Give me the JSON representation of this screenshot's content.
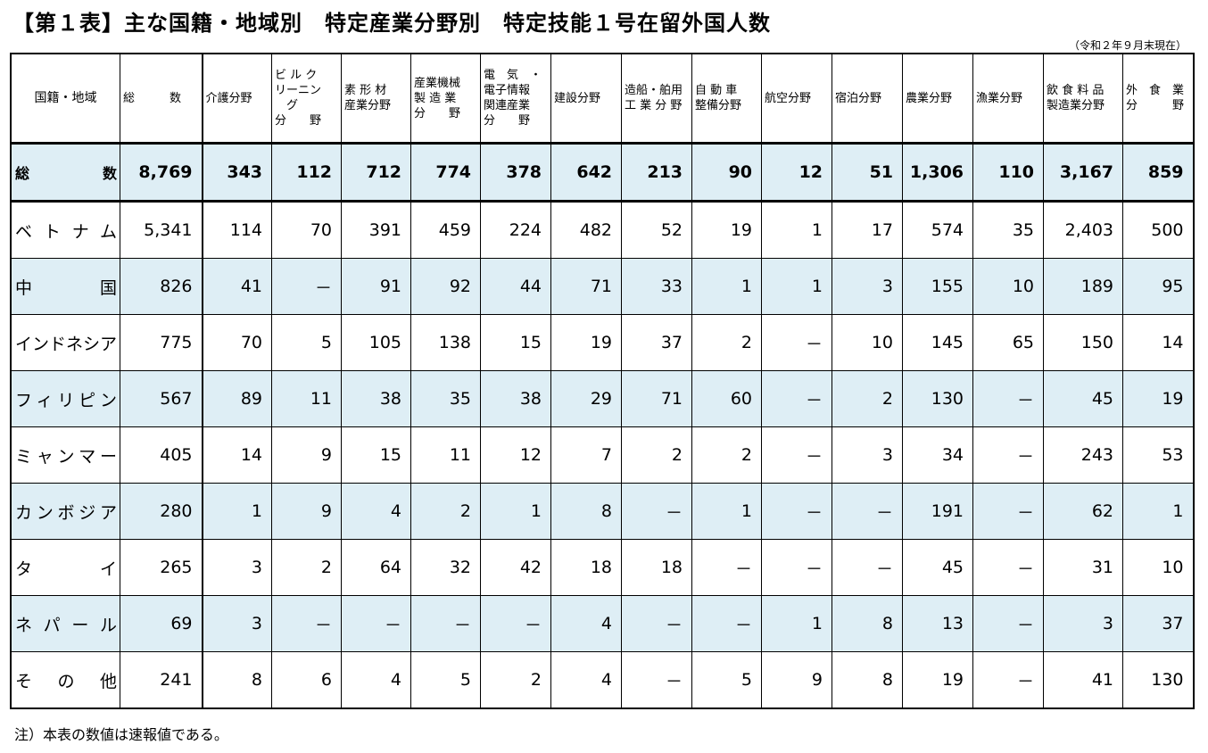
{
  "title": "【第１表】主な国籍・地域別　特定産業分野別　特定技能１号在留外国人数",
  "date_note": "（令和２年９月末現在）",
  "headers": [
    "国籍・地域",
    "総　　　数",
    "介護分野",
    "ビ ル ク\nリーニン\n　グ\n分　　野",
    "素 形 材\n産業分野",
    "産業機械\n製 造 業\n分　　野",
    "電　気　・\n電子情報\n関連産業\n分　　野",
    "建設分野",
    "造船・舶用\n工 業 分 野",
    "自 動 車\n整備分野",
    "航空分野",
    "宿泊分野",
    "農業分野",
    "漁業分野",
    "飲 食 料 品\n製造業分野",
    "外　食　業\n分　　　野"
  ],
  "total_row": {
    "label": "総　　　数",
    "values": [
      "8,769",
      "343",
      "112",
      "712",
      "774",
      "378",
      "642",
      "213",
      "90",
      "12",
      "51",
      "1,306",
      "110",
      "3,167",
      "859"
    ]
  },
  "rows": [
    {
      "label": "ベトナム",
      "values": [
        "5,341",
        "114",
        "70",
        "391",
        "459",
        "224",
        "482",
        "52",
        "19",
        "1",
        "17",
        "574",
        "35",
        "2,403",
        "500"
      ]
    },
    {
      "label": "中国",
      "values": [
        "826",
        "41",
        "－",
        "91",
        "92",
        "44",
        "71",
        "33",
        "1",
        "1",
        "3",
        "155",
        "10",
        "189",
        "95"
      ]
    },
    {
      "label": "インドネシア",
      "values": [
        "775",
        "70",
        "5",
        "105",
        "138",
        "15",
        "19",
        "37",
        "2",
        "－",
        "10",
        "145",
        "65",
        "150",
        "14"
      ]
    },
    {
      "label": "フィリピン",
      "values": [
        "567",
        "89",
        "11",
        "38",
        "35",
        "38",
        "29",
        "71",
        "60",
        "－",
        "2",
        "130",
        "－",
        "45",
        "19"
      ]
    },
    {
      "label": "ミャンマー",
      "values": [
        "405",
        "14",
        "9",
        "15",
        "11",
        "12",
        "7",
        "2",
        "2",
        "－",
        "3",
        "34",
        "－",
        "243",
        "53"
      ]
    },
    {
      "label": "カンボジア",
      "values": [
        "280",
        "1",
        "9",
        "4",
        "2",
        "1",
        "8",
        "－",
        "1",
        "－",
        "－",
        "191",
        "－",
        "62",
        "1"
      ]
    },
    {
      "label": "タイ",
      "values": [
        "265",
        "3",
        "2",
        "64",
        "32",
        "42",
        "18",
        "18",
        "－",
        "－",
        "－",
        "45",
        "－",
        "31",
        "10"
      ]
    },
    {
      "label": "ネパール",
      "values": [
        "69",
        "3",
        "－",
        "－",
        "－",
        "－",
        "4",
        "－",
        "－",
        "1",
        "8",
        "13",
        "－",
        "3",
        "37"
      ]
    },
    {
      "label": "その他",
      "values": [
        "241",
        "8",
        "6",
        "4",
        "5",
        "2",
        "4",
        "－",
        "5",
        "9",
        "8",
        "19",
        "－",
        "41",
        "130"
      ]
    }
  ],
  "footnote": "注）本表の数値は速報値である。",
  "colors": {
    "row_shade": "#deeef5",
    "border": "#000000"
  }
}
